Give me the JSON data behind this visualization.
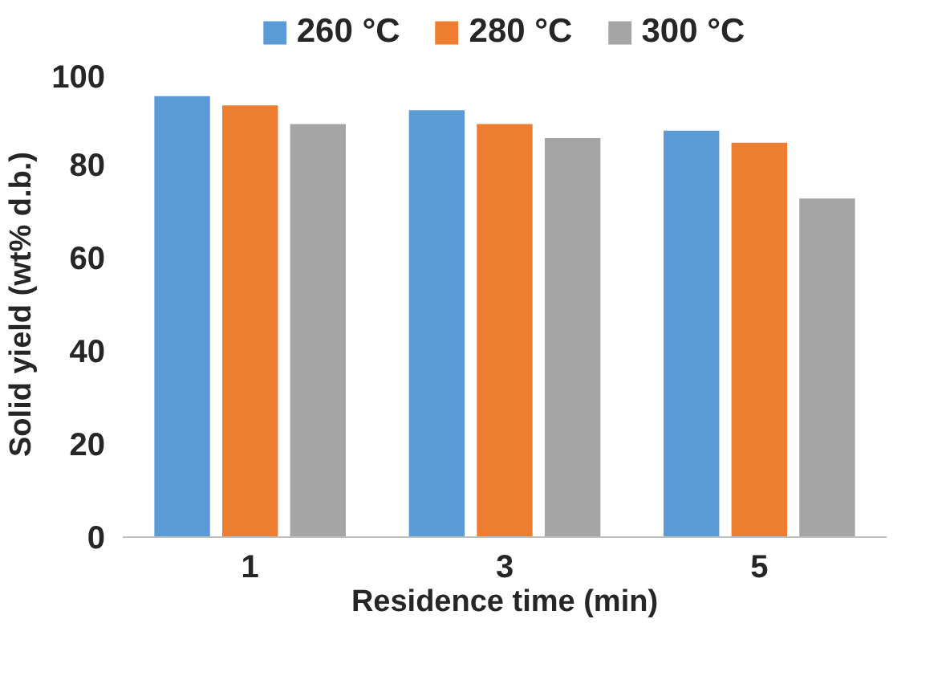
{
  "chart_data": {
    "type": "bar",
    "categories": [
      "1",
      "3",
      "5"
    ],
    "xlabel": "Residence time (min)",
    "ylabel": "Solid yield (wt% d.b.)",
    "series": [
      {
        "name": "260 °C",
        "color": "#5b9bd5",
        "values": [
          94.7,
          91.7,
          87.3
        ]
      },
      {
        "name": "280 °C",
        "color": "#ed7d31",
        "values": [
          92.7,
          88.7,
          84.7
        ]
      },
      {
        "name": "300 °C",
        "color": "#a5a5a5",
        "values": [
          88.7,
          85.7,
          72.7
        ]
      }
    ],
    "ylim": [
      0,
      100
    ],
    "yticks": [
      0,
      20,
      40,
      60,
      80,
      100
    ],
    "grid": false,
    "legend": "top"
  }
}
